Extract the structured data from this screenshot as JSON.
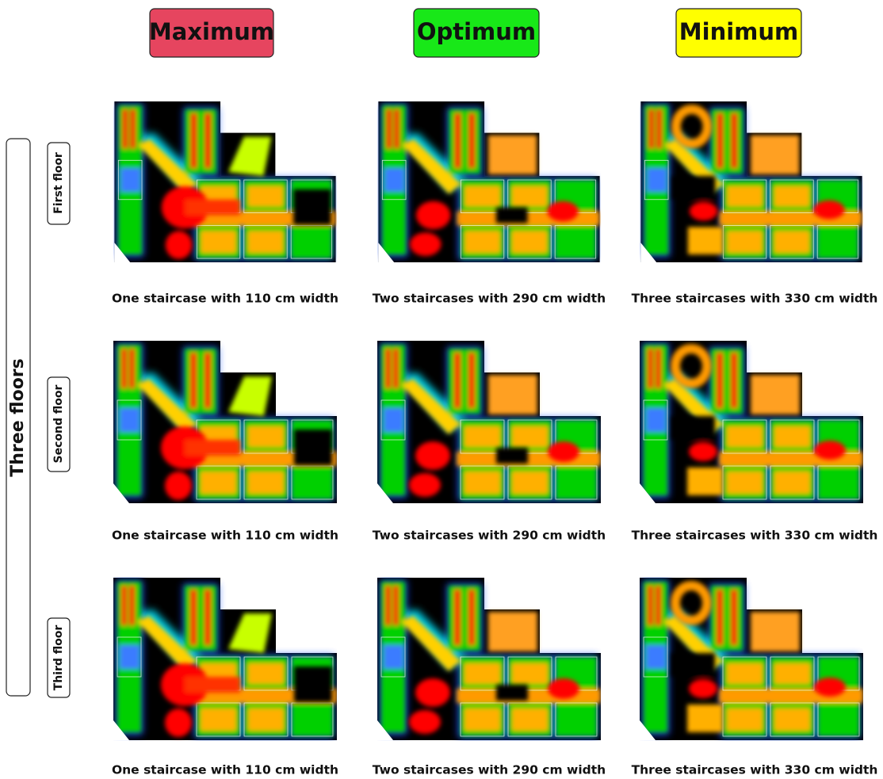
{
  "headers": [
    "Maximum",
    "Optimum",
    "Minimum"
  ],
  "group_label": "Three floors",
  "rows": [
    {
      "label": "First floor",
      "captions": [
        "One staircase with 110 cm width",
        "Two staircases with 290 cm width",
        "Three staircases with 330 cm width"
      ]
    },
    {
      "label": "Second floor",
      "captions": [
        "One staircase with 110 cm width",
        "Two staircases with 290 cm width",
        "Three staircases with 330 cm width"
      ]
    },
    {
      "label": "Third floor",
      "captions": [
        "One staircase with 110 cm width",
        "Two staircases with 290 cm width",
        "Three staircases with 330 cm width"
      ]
    }
  ]
}
